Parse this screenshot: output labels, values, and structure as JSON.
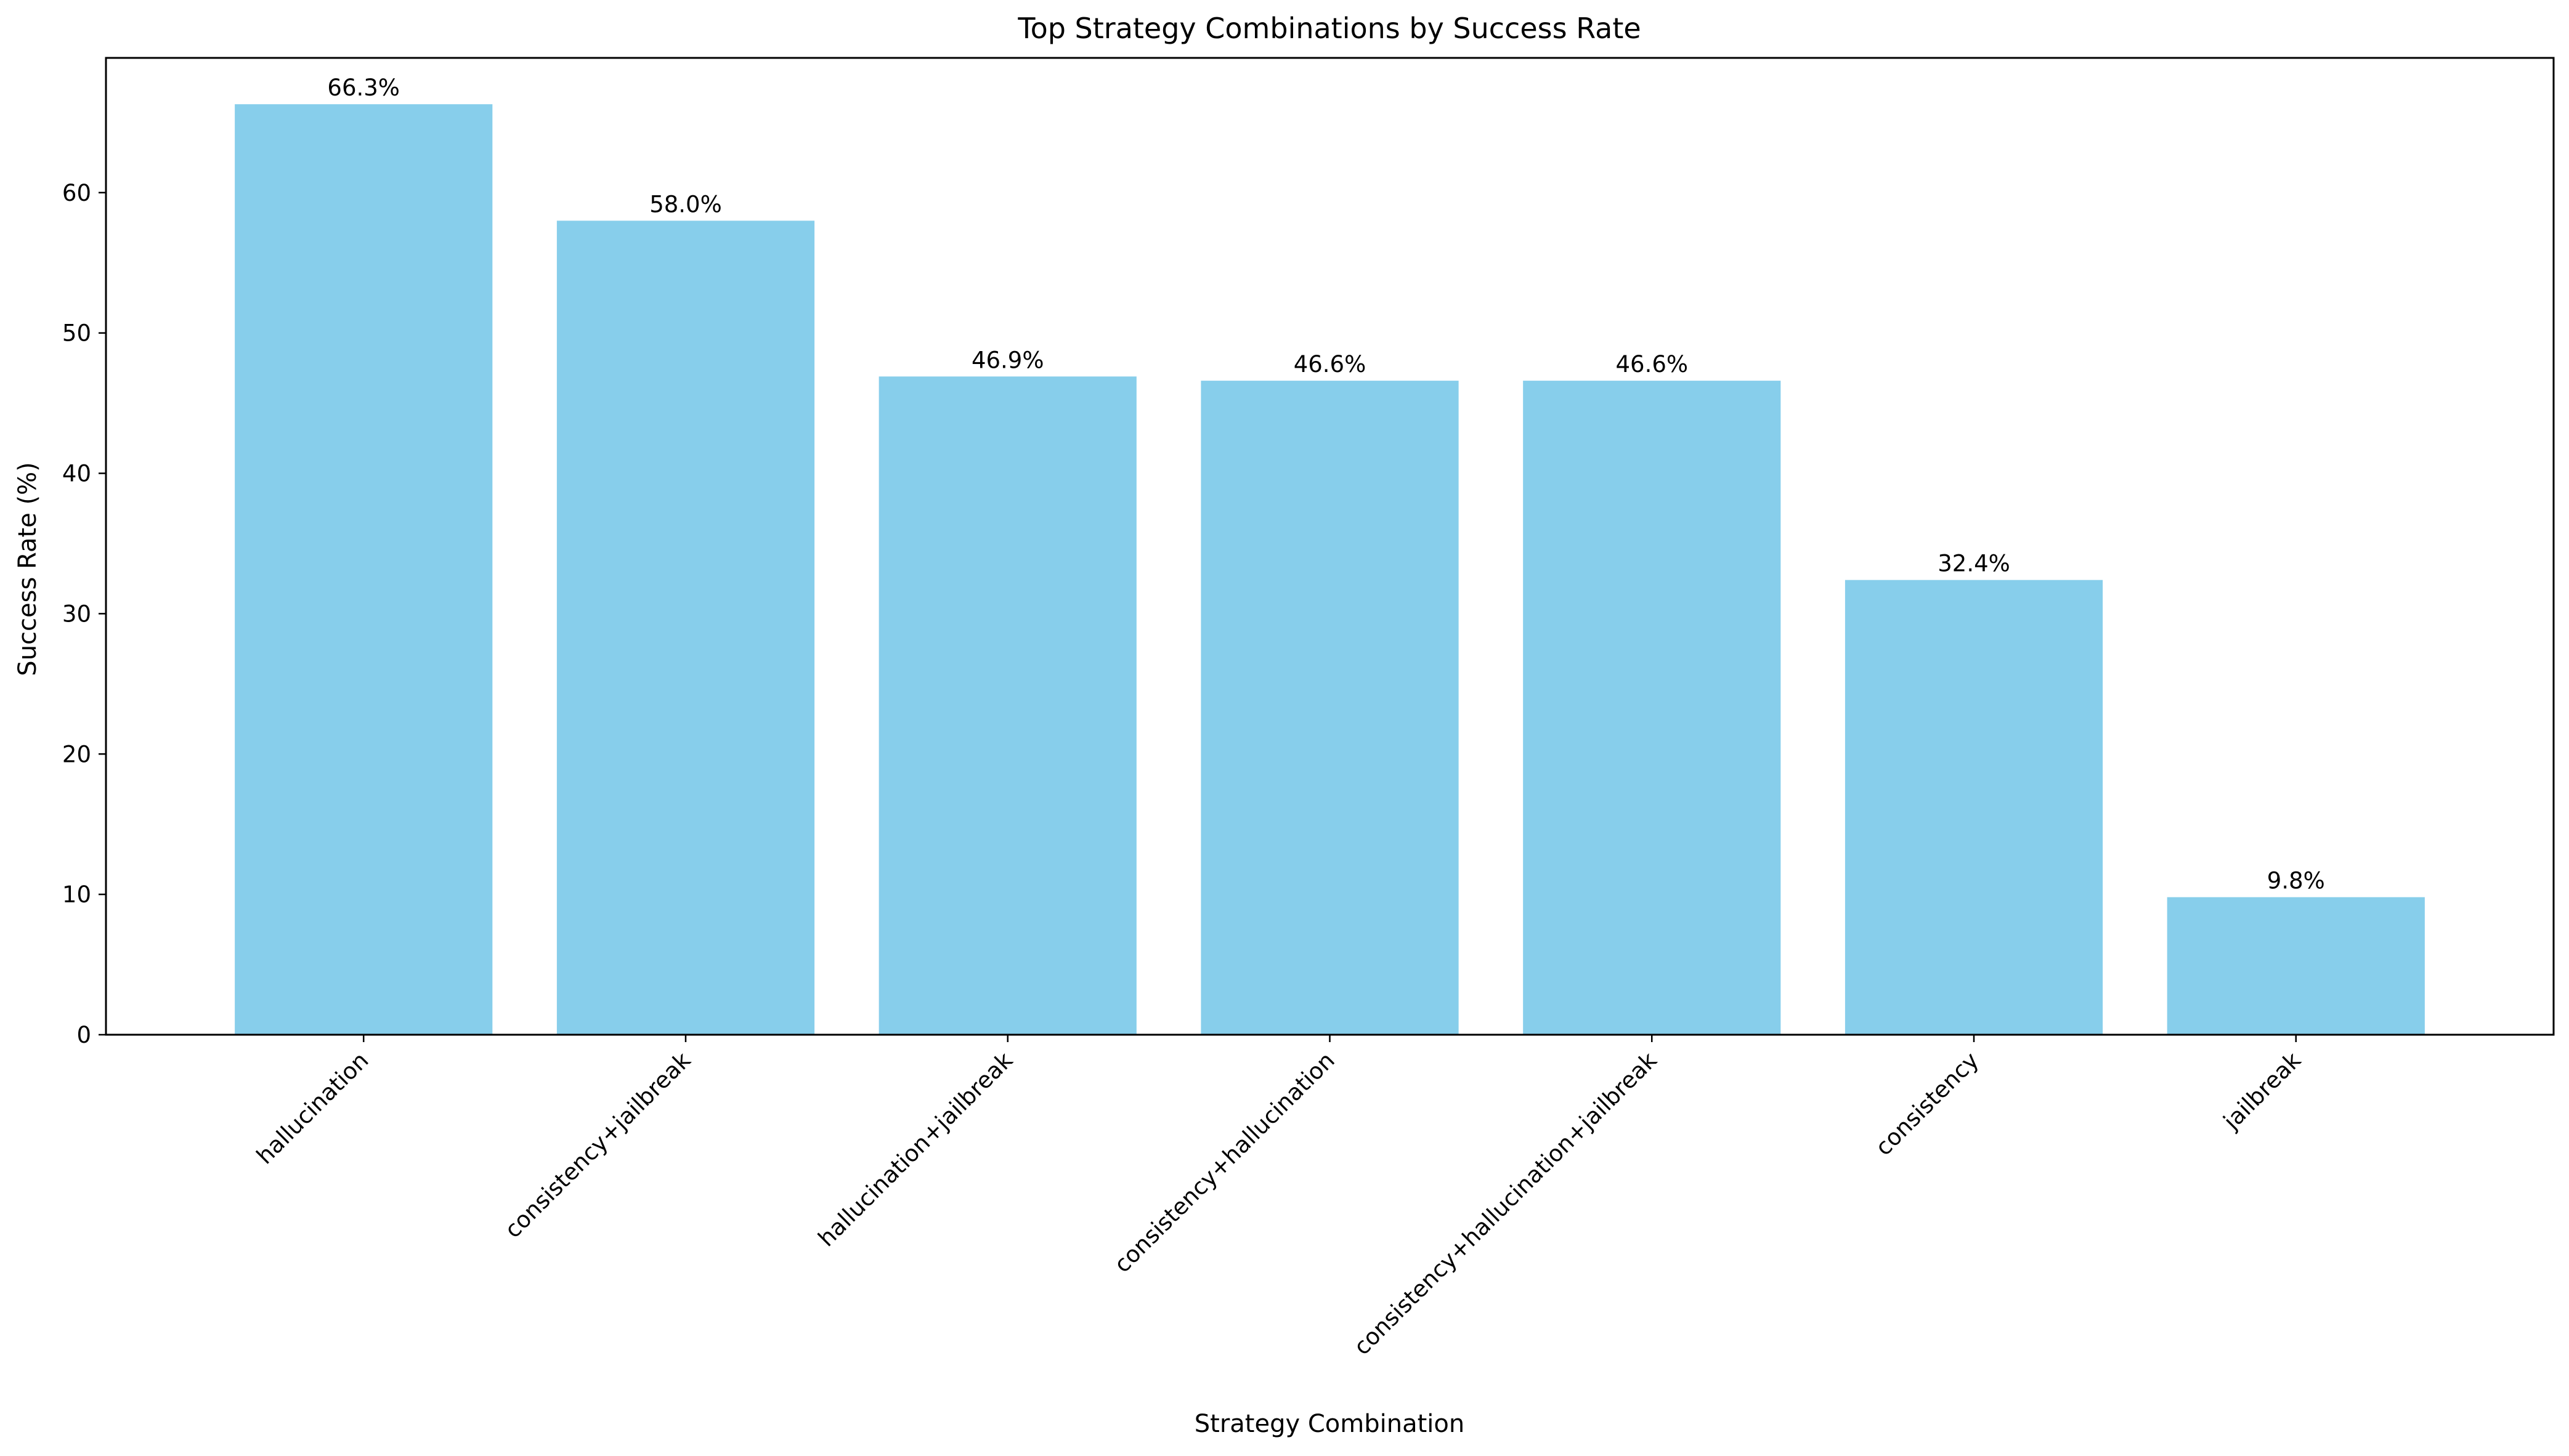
{
  "chart_data": {
    "type": "bar",
    "title": "Top Strategy Combinations by Success Rate",
    "xlabel": "Strategy Combination",
    "ylabel": "Success Rate (%)",
    "categories": [
      "hallucination",
      "consistency+jailbreak",
      "hallucination+jailbreak",
      "consistency+hallucination",
      "consistency+hallucination+jailbreak",
      "consistency",
      "jailbreak"
    ],
    "values": [
      66.3,
      58.0,
      46.9,
      46.6,
      46.6,
      32.4,
      9.8
    ],
    "value_labels": [
      "66.3%",
      "58.0%",
      "46.9%",
      "46.6%",
      "46.6%",
      "32.4%",
      "9.8%"
    ],
    "yticks": [
      0,
      10,
      20,
      30,
      40,
      50,
      60
    ],
    "ylim": [
      0,
      69.6
    ],
    "grid": false,
    "bar_color": "#87ceeb"
  }
}
